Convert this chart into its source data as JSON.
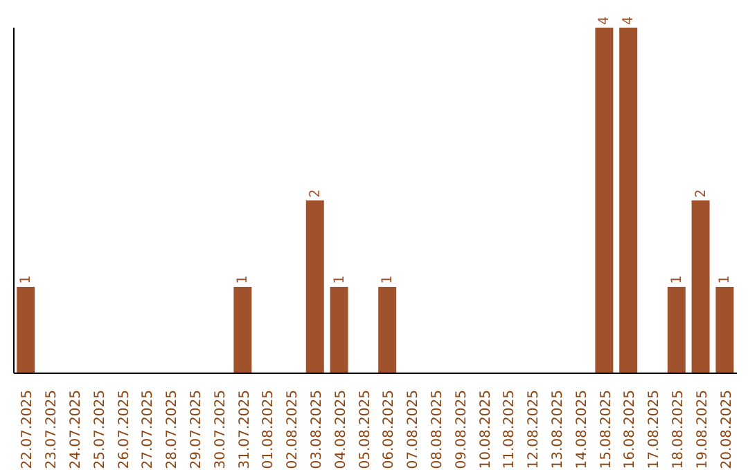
{
  "chart_data": {
    "type": "bar",
    "categories": [
      "22.07.2025",
      "23.07.2025",
      "24.07.2025",
      "25.07.2025",
      "26.07.2025",
      "27.07.2025",
      "28.07.2025",
      "29.07.2025",
      "30.07.2025",
      "31.07.2025",
      "01.08.2025",
      "02.08.2025",
      "03.08.2025",
      "04.08.2025",
      "05.08.2025",
      "06.08.2025",
      "07.08.2025",
      "08.08.2025",
      "09.08.2025",
      "10.08.2025",
      "11.08.2025",
      "12.08.2025",
      "13.08.2025",
      "14.08.2025",
      "15.08.2025",
      "16.08.2025",
      "17.08.2025",
      "18.08.2025",
      "19.08.2025",
      "20.08.2025"
    ],
    "values": [
      1,
      0,
      0,
      0,
      0,
      0,
      0,
      0,
      0,
      1,
      0,
      0,
      2,
      1,
      0,
      1,
      0,
      0,
      0,
      0,
      0,
      0,
      0,
      0,
      4,
      4,
      0,
      1,
      2,
      1
    ],
    "value_labels": [
      "1",
      null,
      null,
      null,
      null,
      null,
      null,
      null,
      null,
      "1",
      null,
      null,
      "2",
      "1",
      null,
      "1",
      null,
      null,
      null,
      null,
      null,
      null,
      null,
      null,
      "4",
      "4",
      null,
      "1",
      "2",
      "1"
    ],
    "color": "#a0522d",
    "tick_labels": "x"
  }
}
